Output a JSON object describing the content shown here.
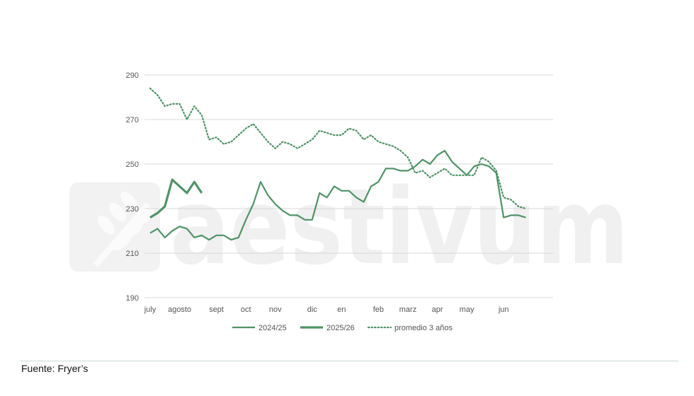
{
  "source_note": "Fuente: Fryer’s",
  "watermark": {
    "text": "aestivum",
    "logo_icon": "wheat-icon"
  },
  "colors": {
    "series": "#4f9367",
    "grid": "#d9d9d9",
    "axis_text": "#555555"
  },
  "chart_data": {
    "type": "line",
    "title": "",
    "xlabel": "",
    "ylabel": "",
    "ylim": [
      190,
      290
    ],
    "yticks": [
      190,
      210,
      230,
      250,
      270,
      290
    ],
    "grid": "horizontal",
    "legend_position": "bottom",
    "x_week_range": [
      0,
      50
    ],
    "x_tick_labels": [
      {
        "label": "july",
        "week": 0
      },
      {
        "label": "agosto",
        "week": 4
      },
      {
        "label": "sept",
        "week": 9
      },
      {
        "label": "oct",
        "week": 13
      },
      {
        "label": "nov",
        "week": 17
      },
      {
        "label": "dic",
        "week": 22
      },
      {
        "label": "en",
        "week": 26
      },
      {
        "label": "feb",
        "week": 31
      },
      {
        "label": "marz",
        "week": 35
      },
      {
        "label": "apr",
        "week": 39
      },
      {
        "label": "may",
        "week": 43
      },
      {
        "label": "jun",
        "week": 48
      }
    ],
    "series": [
      {
        "name": "2024/25",
        "style": "thin",
        "x": [
          0,
          1,
          2,
          3,
          4,
          5,
          6,
          7,
          8,
          9,
          10,
          11,
          12,
          13,
          14,
          15,
          16,
          17,
          18,
          19,
          20,
          21,
          22,
          23,
          24,
          25,
          26,
          27,
          28,
          29,
          30,
          31,
          32,
          33,
          34,
          35,
          36,
          37,
          38,
          39,
          40,
          41,
          42,
          43,
          44,
          45,
          46,
          47,
          48,
          49,
          50,
          51
        ],
        "values": [
          219,
          221,
          217,
          220,
          222,
          221,
          217,
          218,
          216,
          218,
          218,
          216,
          217,
          225,
          232,
          242,
          236,
          232,
          229,
          227,
          227,
          225,
          225,
          237,
          235,
          240,
          238,
          238,
          235,
          233,
          240,
          242,
          248,
          248,
          247,
          247,
          249,
          252,
          250,
          254,
          256,
          251,
          248,
          245,
          249,
          250,
          249,
          246,
          226,
          227,
          227,
          226
        ]
      },
      {
        "name": "2025/26",
        "style": "thick",
        "x": [
          0,
          1,
          2,
          3,
          4,
          5,
          6,
          7
        ],
        "values": [
          226,
          228,
          231,
          243,
          240,
          237,
          242,
          237
        ]
      },
      {
        "name": "promedio 3 años",
        "style": "dotted",
        "x": [
          0,
          1,
          2,
          3,
          4,
          5,
          6,
          7,
          8,
          9,
          10,
          11,
          12,
          13,
          14,
          15,
          16,
          17,
          18,
          19,
          20,
          21,
          22,
          23,
          24,
          25,
          26,
          27,
          28,
          29,
          30,
          31,
          32,
          33,
          34,
          35,
          36,
          37,
          38,
          39,
          40,
          41,
          42,
          43,
          44,
          45,
          46,
          47,
          48,
          49,
          50,
          51
        ],
        "values": [
          284,
          281,
          276,
          277,
          277,
          270,
          276,
          272,
          261,
          262,
          259,
          260,
          263,
          266,
          268,
          264,
          260,
          257,
          260,
          259,
          257,
          259,
          261,
          265,
          264,
          263,
          263,
          266,
          265,
          261,
          263,
          260,
          259,
          258,
          256,
          253,
          246,
          247,
          244,
          246,
          248,
          245,
          245,
          245,
          245,
          253,
          251,
          247,
          235,
          234,
          231,
          230
        ]
      }
    ]
  }
}
